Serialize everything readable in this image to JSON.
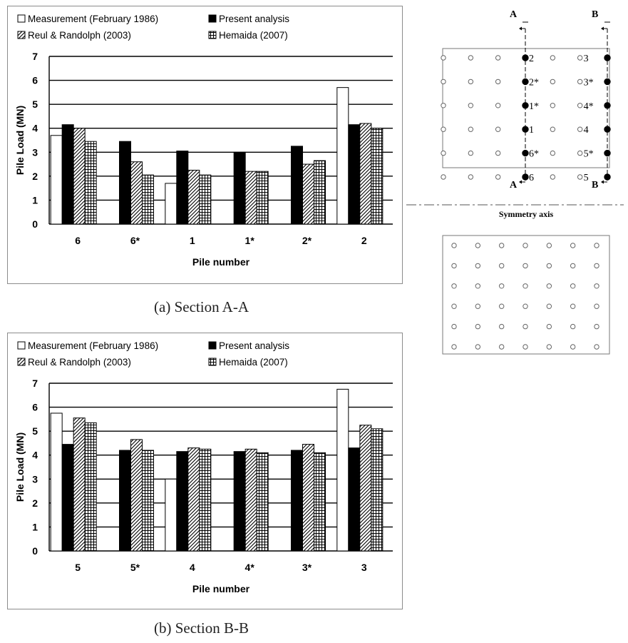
{
  "legend": [
    {
      "name": "Measurement (February 1986)",
      "pattern": "open"
    },
    {
      "name": "Present analysis",
      "pattern": "solid"
    },
    {
      "name": "Reul & Randolph (2003)",
      "pattern": "hatch"
    },
    {
      "name": "Hemaida (2007)",
      "pattern": "grid"
    }
  ],
  "chart_data": [
    {
      "type": "bar",
      "caption": "(a) Section A-A",
      "xlabel": "Pile number",
      "ylabel": "Pile Load (MN)",
      "ylim": [
        0,
        7
      ],
      "yticks": [
        "0",
        "1",
        "2",
        "3",
        "4",
        "5",
        "6",
        "7"
      ],
      "grid": "horizontal",
      "legend_position": "top",
      "categories": [
        "6",
        "6*",
        "1",
        "1*",
        "2*",
        "2"
      ],
      "series": [
        {
          "name": "Measurement (February 1986)",
          "values": [
            3.7,
            null,
            1.7,
            null,
            null,
            5.7
          ]
        },
        {
          "name": "Present analysis",
          "values": [
            4.15,
            3.45,
            3.05,
            3.0,
            3.25,
            4.15
          ]
        },
        {
          "name": "Reul & Randolph (2003)",
          "values": [
            4.0,
            2.6,
            2.25,
            2.2,
            2.5,
            4.2
          ]
        },
        {
          "name": "Hemaida (2007)",
          "values": [
            3.45,
            2.05,
            2.05,
            2.2,
            2.65,
            4.0
          ]
        }
      ]
    },
    {
      "type": "bar",
      "caption": "(b) Section B-B",
      "xlabel": "Pile number",
      "ylabel": "Pile Load (MN)",
      "ylim": [
        0,
        7
      ],
      "yticks": [
        "0",
        "1",
        "2",
        "3",
        "4",
        "5",
        "6",
        "7"
      ],
      "grid": "horizontal",
      "legend_position": "top",
      "categories": [
        "5",
        "5*",
        "4",
        "4*",
        "3*",
        "3"
      ],
      "series": [
        {
          "name": "Measurement (February 1986)",
          "values": [
            5.75,
            null,
            3.0,
            null,
            null,
            6.75
          ]
        },
        {
          "name": "Present analysis",
          "values": [
            4.45,
            4.2,
            4.15,
            4.15,
            4.2,
            4.3
          ]
        },
        {
          "name": "Reul & Randolph (2003)",
          "values": [
            5.55,
            4.65,
            4.3,
            4.25,
            4.45,
            5.25
          ]
        },
        {
          "name": "Hemaida (2007)",
          "values": [
            5.35,
            4.2,
            4.25,
            4.1,
            4.1,
            5.1
          ]
        }
      ]
    }
  ],
  "pile_layout": {
    "section_labels": [
      "A",
      "B"
    ],
    "symmetry_label": "Symmetry axis",
    "rows": 6,
    "cols": 7,
    "section_a_labels": [
      "2",
      "2*",
      "1*",
      "1",
      "6*",
      "6"
    ],
    "section_b_labels": [
      "3",
      "3*",
      "4*",
      "4",
      "5*",
      "5"
    ]
  }
}
